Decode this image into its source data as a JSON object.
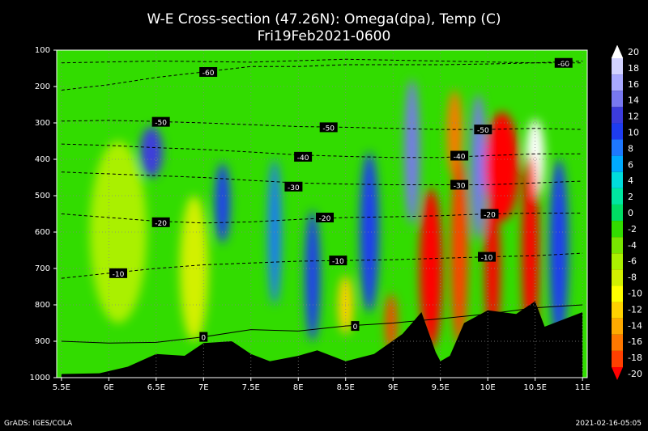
{
  "header": {
    "title": "W-E Cross-section (47.26N): Omega(dpa), Temp (C)",
    "subtitle": "Fri19Feb2021-0600"
  },
  "footer": {
    "credit": "GrADS: IGES/COLA",
    "timestamp": "2021-02-16-05:05"
  },
  "chart_data": {
    "type": "heatmap",
    "title": "W-E Cross-section (47.26N): Omega(dpa), Temp (C)",
    "subtitle": "Fri19Feb2021-0600",
    "x_ticks": [
      "5.5E",
      "6E",
      "6.5E",
      "7E",
      "7.5E",
      "8E",
      "8.5E",
      "9E",
      "9.5E",
      "10E",
      "10.5E",
      "11E"
    ],
    "x_tick_values": [
      5.5,
      6,
      6.5,
      7,
      7.5,
      8,
      8.5,
      9,
      9.5,
      10,
      10.5,
      11
    ],
    "xlim": [
      5.45,
      11.05
    ],
    "y_ticks": [
      "100",
      "200",
      "300",
      "400",
      "500",
      "600",
      "700",
      "800",
      "900",
      "1000"
    ],
    "y_tick_values": [
      100,
      200,
      300,
      400,
      500,
      600,
      700,
      800,
      900,
      1000
    ],
    "ylim": [
      100,
      1000
    ],
    "y_reversed": true,
    "grid": true,
    "colorbar": {
      "labels": [
        "20",
        "18",
        "16",
        "14",
        "12",
        "10",
        "8",
        "6",
        "4",
        "2",
        "0",
        "-2",
        "-4",
        "-6",
        "-8",
        "-10",
        "-12",
        "-14",
        "-16",
        "-18",
        "-20"
      ],
      "colors": [
        "#ffffff",
        "#d2d2ff",
        "#a8a8ff",
        "#7878f0",
        "#3c3cdc",
        "#1e3cf0",
        "#1e78ff",
        "#00aaff",
        "#00dcdc",
        "#00e6a0",
        "#00dc64",
        "#32dc00",
        "#78e600",
        "#aaf000",
        "#d2f000",
        "#ffff00",
        "#ffd200",
        "#ffaa00",
        "#ff7800",
        "#ff4000",
        "#ff0000"
      ]
    },
    "temperature_contours": [
      {
        "label": "-60",
        "label_x": [
          7.05,
          10.8
        ],
        "label_p": [
          160,
          135
        ],
        "points": [
          [
            5.5,
            210
          ],
          [
            6,
            195
          ],
          [
            6.5,
            175
          ],
          [
            7,
            160
          ],
          [
            7.5,
            145
          ],
          [
            8,
            145
          ],
          [
            8.5,
            140
          ],
          [
            9,
            140
          ],
          [
            9.5,
            140
          ],
          [
            10,
            138
          ],
          [
            10.5,
            135
          ],
          [
            11,
            130
          ]
        ]
      },
      {
        "label": "-60",
        "label_x": [],
        "label_p": [],
        "points": [
          [
            5.5,
            135
          ],
          [
            6.5,
            130
          ],
          [
            7.5,
            133
          ],
          [
            8.5,
            125
          ],
          [
            9.5,
            130
          ],
          [
            10.5,
            135
          ],
          [
            11,
            135
          ]
        ]
      },
      {
        "label": "-50",
        "label_x": [
          6.55,
          8.32,
          9.95
        ],
        "label_p": [
          297,
          312,
          318
        ],
        "points": [
          [
            5.5,
            295
          ],
          [
            6,
            293
          ],
          [
            6.5,
            296
          ],
          [
            7,
            300
          ],
          [
            7.5,
            305
          ],
          [
            8,
            310
          ],
          [
            8.5,
            312
          ],
          [
            9,
            315
          ],
          [
            9.5,
            318
          ],
          [
            10,
            318
          ],
          [
            10.5,
            315
          ],
          [
            11,
            318
          ]
        ]
      },
      {
        "label": "-40",
        "label_x": [
          8.05,
          9.7
        ],
        "label_p": [
          393,
          390
        ],
        "points": [
          [
            5.5,
            358
          ],
          [
            6,
            362
          ],
          [
            6.5,
            368
          ],
          [
            7,
            373
          ],
          [
            7.5,
            380
          ],
          [
            8,
            388
          ],
          [
            8.5,
            392
          ],
          [
            9,
            395
          ],
          [
            9.5,
            395
          ],
          [
            10,
            390
          ],
          [
            10.5,
            385
          ],
          [
            11,
            385
          ]
        ]
      },
      {
        "label": "-30",
        "label_x": [
          7.95,
          9.7
        ],
        "label_p": [
          475,
          470
        ],
        "points": [
          [
            5.5,
            435
          ],
          [
            6,
            440
          ],
          [
            6.5,
            445
          ],
          [
            7,
            450
          ],
          [
            7.5,
            458
          ],
          [
            8,
            465
          ],
          [
            8.5,
            468
          ],
          [
            9,
            470
          ],
          [
            9.5,
            470
          ],
          [
            10,
            470
          ],
          [
            10.5,
            465
          ],
          [
            11,
            460
          ]
        ]
      },
      {
        "label": "-20",
        "label_x": [
          6.55,
          8.28,
          10.02
        ],
        "label_p": [
          573,
          560,
          550
        ],
        "points": [
          [
            5.5,
            550
          ],
          [
            6,
            560
          ],
          [
            6.5,
            570
          ],
          [
            7,
            575
          ],
          [
            7.5,
            572
          ],
          [
            8,
            565
          ],
          [
            8.5,
            560
          ],
          [
            9,
            558
          ],
          [
            9.5,
            555
          ],
          [
            10,
            550
          ],
          [
            10.5,
            548
          ],
          [
            11,
            548
          ]
        ]
      },
      {
        "label": "-10",
        "label_x": [
          6.1,
          8.42,
          9.99
        ],
        "label_p": [
          713,
          678,
          668
        ],
        "points": [
          [
            5.5,
            727
          ],
          [
            6,
            713
          ],
          [
            6.5,
            700
          ],
          [
            7,
            690
          ],
          [
            7.5,
            685
          ],
          [
            8,
            680
          ],
          [
            8.5,
            678
          ],
          [
            9,
            676
          ],
          [
            9.5,
            672
          ],
          [
            10,
            668
          ],
          [
            10.5,
            665
          ],
          [
            11,
            658
          ]
        ]
      },
      {
        "label": "0",
        "label_x": [
          7.0,
          8.6
        ],
        "label_p": [
          888,
          858
        ],
        "points": [
          [
            5.5,
            900
          ],
          [
            6,
            905
          ],
          [
            6.5,
            903
          ],
          [
            7,
            888
          ],
          [
            7.5,
            868
          ],
          [
            8,
            872
          ],
          [
            8.5,
            858
          ],
          [
            9,
            850
          ],
          [
            9.5,
            838
          ],
          [
            10,
            825
          ],
          [
            10.5,
            808
          ],
          [
            11,
            800
          ]
        ]
      }
    ],
    "terrain_pressure": {
      "x": [
        5.5,
        5.9,
        6.2,
        6.5,
        6.8,
        7.0,
        7.3,
        7.5,
        7.7,
        8.0,
        8.2,
        8.5,
        8.8,
        9.1,
        9.3,
        9.45,
        9.5,
        9.6,
        9.75,
        10.0,
        10.3,
        10.5,
        10.6,
        10.8,
        11.0
      ],
      "p": [
        990,
        988,
        970,
        935,
        940,
        905,
        900,
        935,
        955,
        940,
        925,
        955,
        935,
        880,
        820,
        930,
        955,
        940,
        850,
        815,
        825,
        790,
        860,
        840,
        820
      ]
    },
    "omega_blobs": [
      {
        "x": 6.45,
        "p": 380,
        "v": 12,
        "rx": 0.12,
        "ry": 70
      },
      {
        "x": 7.2,
        "p": 520,
        "v": 10,
        "rx": 0.08,
        "ry": 110
      },
      {
        "x": 7.75,
        "p": 600,
        "v": 8,
        "rx": 0.07,
        "ry": 200
      },
      {
        "x": 8.15,
        "p": 720,
        "v": 10,
        "rx": 0.08,
        "ry": 180
      },
      {
        "x": 8.75,
        "p": 600,
        "v": 10,
        "rx": 0.1,
        "ry": 220
      },
      {
        "x": 9.2,
        "p": 380,
        "v": 14,
        "rx": 0.08,
        "ry": 200
      },
      {
        "x": 9.4,
        "p": 700,
        "v": -20,
        "rx": 0.12,
        "ry": 220
      },
      {
        "x": 9.65,
        "p": 330,
        "v": -16,
        "rx": 0.08,
        "ry": 120
      },
      {
        "x": 9.7,
        "p": 650,
        "v": -18,
        "rx": 0.09,
        "ry": 260
      },
      {
        "x": 9.9,
        "p": 420,
        "v": 14,
        "rx": 0.08,
        "ry": 200
      },
      {
        "x": 10.15,
        "p": 420,
        "v": -20,
        "rx": 0.18,
        "ry": 150
      },
      {
        "x": 10.05,
        "p": 700,
        "v": -20,
        "rx": 0.08,
        "ry": 200
      },
      {
        "x": 10.5,
        "p": 400,
        "v": 20,
        "rx": 0.1,
        "ry": 110
      },
      {
        "x": 10.45,
        "p": 650,
        "v": -20,
        "rx": 0.09,
        "ry": 260
      },
      {
        "x": 10.75,
        "p": 650,
        "v": 10,
        "rx": 0.1,
        "ry": 250
      },
      {
        "x": 6.9,
        "p": 700,
        "v": -8,
        "rx": 0.15,
        "ry": 200
      },
      {
        "x": 6.1,
        "p": 600,
        "v": -6,
        "rx": 0.3,
        "ry": 250
      },
      {
        "x": 8.5,
        "p": 800,
        "v": -12,
        "rx": 0.08,
        "ry": 80
      },
      {
        "x": 8.98,
        "p": 850,
        "v": -18,
        "rx": 0.06,
        "ry": 80
      }
    ]
  }
}
